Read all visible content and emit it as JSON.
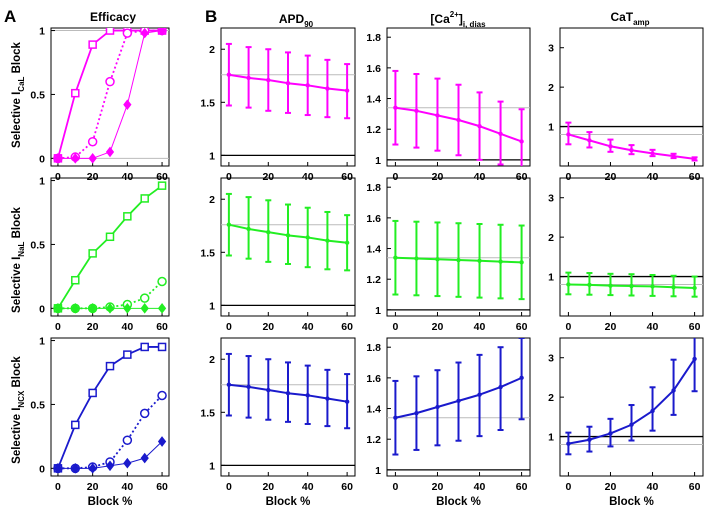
{
  "figure": {
    "panel_a": "A",
    "panel_b": "B",
    "column_titles": {
      "efficacy": "Efficacy",
      "apd": {
        "base": "APD",
        "sub": "90"
      },
      "cadias": {
        "pre": "[Ca",
        "sup": "2+",
        "post": "]",
        "sub": "i, dias"
      },
      "catamp": {
        "base": "CaT",
        "sub": "amp"
      }
    },
    "row_labels": [
      {
        "pre": "Selective I",
        "sub": "CaL",
        "post": " Block"
      },
      {
        "pre": "Selective I",
        "sub": "NaL",
        "post": " Block"
      },
      {
        "pre": "Selective I",
        "sub": "NCX",
        "post": " Block"
      }
    ],
    "xlabel": "Block %"
  },
  "colors": {
    "magenta": "#ff00ff",
    "green": "#22ee22",
    "blue": "#1a1acc",
    "ref_gray": "#aaaaaa",
    "baseline": "#000000"
  },
  "chart_data": [
    {
      "type": "line",
      "panel": "efficacy",
      "row": "CaL",
      "title": "Efficacy",
      "xlabel": "",
      "x": [
        0,
        10,
        20,
        30,
        40,
        50,
        60
      ],
      "xlim": [
        -4,
        64
      ],
      "ylim": [
        -0.06,
        1.02
      ],
      "yticks": [
        0,
        0.5,
        1
      ],
      "ytick_labels": [
        "0",
        "0.5",
        "1"
      ],
      "xticks": [
        0,
        20,
        40,
        60
      ],
      "xtick_labels": [
        "0",
        "20",
        "40",
        "60"
      ],
      "reflines": [
        {
          "y": 1,
          "color": "#bbbbbb"
        },
        {
          "y": 0,
          "color": "#bbbbbb"
        }
      ],
      "series": [
        {
          "name": "squares",
          "marker": "square",
          "style": "solid",
          "width": 1.8,
          "values": [
            0,
            0.51,
            0.89,
            1,
            1,
            1,
            1
          ]
        },
        {
          "name": "circles",
          "marker": "circle",
          "style": "dotted",
          "width": 1.8,
          "values": [
            0,
            0.01,
            0.13,
            0.6,
            0.98,
            1,
            1
          ]
        },
        {
          "name": "diamonds",
          "marker": "diamond",
          "style": "solid",
          "width": 1.0,
          "values": [
            0,
            0,
            0,
            0.05,
            0.42,
            0.98,
            1
          ]
        }
      ]
    },
    {
      "type": "line",
      "panel": "efficacy",
      "row": "NaL",
      "xlabel": "",
      "x": [
        0,
        10,
        20,
        30,
        40,
        50,
        60
      ],
      "xlim": [
        -4,
        64
      ],
      "ylim": [
        -0.06,
        1.02
      ],
      "yticks": [
        0,
        0.5,
        1
      ],
      "ytick_labels": [
        "0",
        "0.5",
        "1"
      ],
      "xticks": [
        0,
        20,
        40,
        60
      ],
      "xtick_labels": [
        "0",
        "20",
        "40",
        "60"
      ],
      "reflines": [],
      "series": [
        {
          "name": "squares",
          "marker": "square",
          "style": "solid",
          "width": 1.8,
          "values": [
            0,
            0.22,
            0.43,
            0.56,
            0.72,
            0.86,
            0.96
          ]
        },
        {
          "name": "circles",
          "marker": "circle",
          "style": "dotted",
          "width": 1.8,
          "values": [
            0,
            0,
            0,
            0.01,
            0.03,
            0.08,
            0.21
          ]
        },
        {
          "name": "diamonds",
          "marker": "diamond",
          "style": "solid",
          "width": 1.0,
          "values": [
            0,
            0,
            0,
            0,
            0,
            0,
            0
          ]
        }
      ]
    },
    {
      "type": "line",
      "panel": "efficacy",
      "row": "NCX",
      "xlabel": "Block %",
      "x": [
        0,
        10,
        20,
        30,
        40,
        50,
        60
      ],
      "xlim": [
        -4,
        64
      ],
      "ylim": [
        -0.06,
        1.02
      ],
      "yticks": [
        0,
        0.5,
        1
      ],
      "ytick_labels": [
        "0",
        "0.5",
        "1"
      ],
      "xticks": [
        0,
        20,
        40,
        60
      ],
      "xtick_labels": [
        "0",
        "20",
        "40",
        "60"
      ],
      "reflines": [],
      "series": [
        {
          "name": "squares",
          "marker": "square",
          "style": "solid",
          "width": 1.8,
          "values": [
            0,
            0.34,
            0.59,
            0.8,
            0.89,
            0.95,
            0.95
          ]
        },
        {
          "name": "circles",
          "marker": "circle",
          "style": "dotted",
          "width": 1.8,
          "values": [
            0,
            0,
            0.01,
            0.05,
            0.22,
            0.43,
            0.57
          ]
        },
        {
          "name": "diamonds",
          "marker": "diamond",
          "style": "solid",
          "width": 1.0,
          "values": [
            0,
            0,
            0,
            0.02,
            0.04,
            0.08,
            0.21
          ]
        }
      ]
    },
    {
      "type": "line",
      "panel": "apd90",
      "row": "CaL",
      "xlabel": "",
      "x": [
        0,
        10,
        20,
        30,
        40,
        50,
        60
      ],
      "xlim": [
        -4,
        64
      ],
      "ylim": [
        0.9,
        2.2
      ],
      "yticks": [
        1,
        1.5,
        2
      ],
      "ytick_labels": [
        "1",
        "1.5",
        "2"
      ],
      "xticks": [
        0,
        20,
        40,
        60
      ],
      "xtick_labels": [
        "0",
        "20",
        "40",
        "60"
      ],
      "reflines": [
        {
          "y": 1,
          "color": "#000000"
        },
        {
          "y": 1.76,
          "color": "#bbbbbb"
        }
      ],
      "series": [
        {
          "name": "mean",
          "marker": "dot",
          "style": "solid",
          "width": 2,
          "values": [
            1.76,
            1.73,
            1.71,
            1.68,
            1.66,
            1.63,
            1.61
          ],
          "err_low": [
            1.47,
            1.45,
            1.42,
            1.4,
            1.38,
            1.36,
            1.35
          ],
          "err_high": [
            2.05,
            2.02,
            2.0,
            1.97,
            1.94,
            1.9,
            1.86
          ]
        }
      ]
    },
    {
      "type": "line",
      "panel": "apd90",
      "row": "NaL",
      "xlabel": "",
      "x": [
        0,
        10,
        20,
        30,
        40,
        50,
        60
      ],
      "xlim": [
        -4,
        64
      ],
      "ylim": [
        0.9,
        2.2
      ],
      "yticks": [
        1,
        1.5,
        2
      ],
      "ytick_labels": [
        "1",
        "1.5",
        "2"
      ],
      "xticks": [
        0,
        20,
        40,
        60
      ],
      "xtick_labels": [
        "0",
        "20",
        "40",
        "60"
      ],
      "reflines": [
        {
          "y": 1,
          "color": "#000000"
        },
        {
          "y": 1.76,
          "color": "#bbbbbb"
        }
      ],
      "series": [
        {
          "name": "mean",
          "marker": "dot",
          "style": "solid",
          "width": 2,
          "values": [
            1.76,
            1.72,
            1.69,
            1.66,
            1.64,
            1.61,
            1.59
          ],
          "err_low": [
            1.47,
            1.44,
            1.41,
            1.39,
            1.36,
            1.34,
            1.33
          ],
          "err_high": [
            2.05,
            2.02,
            1.99,
            1.95,
            1.92,
            1.88,
            1.85
          ]
        }
      ]
    },
    {
      "type": "line",
      "panel": "apd90",
      "row": "NCX",
      "xlabel": "Block %",
      "x": [
        0,
        10,
        20,
        30,
        40,
        50,
        60
      ],
      "xlim": [
        -4,
        64
      ],
      "ylim": [
        0.9,
        2.2
      ],
      "yticks": [
        1,
        1.5,
        2
      ],
      "ytick_labels": [
        "1",
        "1.5",
        "2"
      ],
      "xticks": [
        0,
        20,
        40,
        60
      ],
      "xtick_labels": [
        "0",
        "20",
        "40",
        "60"
      ],
      "reflines": [
        {
          "y": 1,
          "color": "#000000"
        },
        {
          "y": 1.76,
          "color": "#bbbbbb"
        }
      ],
      "series": [
        {
          "name": "mean",
          "marker": "dot",
          "style": "solid",
          "width": 2,
          "values": [
            1.76,
            1.74,
            1.71,
            1.68,
            1.66,
            1.63,
            1.6
          ],
          "err_low": [
            1.47,
            1.45,
            1.43,
            1.41,
            1.39,
            1.37,
            1.35
          ],
          "err_high": [
            2.05,
            2.03,
            2.0,
            1.97,
            1.94,
            1.9,
            1.86
          ]
        }
      ]
    },
    {
      "type": "line",
      "panel": "ca_dias",
      "row": "CaL",
      "xlabel": "",
      "x": [
        0,
        10,
        20,
        30,
        40,
        50,
        60
      ],
      "xlim": [
        -4,
        64
      ],
      "ylim": [
        0.96,
        1.86
      ],
      "yticks": [
        1,
        1.2,
        1.4,
        1.6,
        1.8
      ],
      "ytick_labels": [
        "1",
        "1.2",
        "1.4",
        "1.6",
        "1.8"
      ],
      "xticks": [
        0,
        20,
        40,
        60
      ],
      "xtick_labels": [
        "0",
        "20",
        "40",
        "60"
      ],
      "reflines": [
        {
          "y": 1,
          "color": "#000000"
        },
        {
          "y": 1.34,
          "color": "#bbbbbb"
        }
      ],
      "series": [
        {
          "name": "mean",
          "marker": "dot",
          "style": "solid",
          "width": 2,
          "values": [
            1.34,
            1.32,
            1.29,
            1.26,
            1.22,
            1.17,
            1.12
          ],
          "err_low": [
            1.1,
            1.08,
            1.06,
            1.03,
            1.0,
            0.97,
            0.94
          ],
          "err_high": [
            1.58,
            1.56,
            1.53,
            1.49,
            1.44,
            1.38,
            1.33
          ]
        }
      ]
    },
    {
      "type": "line",
      "panel": "ca_dias",
      "row": "NaL",
      "xlabel": "",
      "x": [
        0,
        10,
        20,
        30,
        40,
        50,
        60
      ],
      "xlim": [
        -4,
        64
      ],
      "ylim": [
        0.96,
        1.86
      ],
      "yticks": [
        1,
        1.2,
        1.4,
        1.6,
        1.8
      ],
      "ytick_labels": [
        "1",
        "1.2",
        "1.4",
        "1.6",
        "1.8"
      ],
      "xticks": [
        0,
        20,
        40,
        60
      ],
      "xtick_labels": [
        "0",
        "20",
        "40",
        "60"
      ],
      "reflines": [
        {
          "y": 1,
          "color": "#000000"
        },
        {
          "y": 1.34,
          "color": "#bbbbbb"
        }
      ],
      "series": [
        {
          "name": "mean",
          "marker": "dot",
          "style": "solid",
          "width": 2,
          "values": [
            1.34,
            1.335,
            1.33,
            1.325,
            1.32,
            1.315,
            1.31
          ],
          "err_low": [
            1.1,
            1.095,
            1.09,
            1.085,
            1.08,
            1.075,
            1.07
          ],
          "err_high": [
            1.58,
            1.575,
            1.57,
            1.565,
            1.56,
            1.555,
            1.55
          ]
        }
      ]
    },
    {
      "type": "line",
      "panel": "ca_dias",
      "row": "NCX",
      "xlabel": "Block %",
      "x": [
        0,
        10,
        20,
        30,
        40,
        50,
        60
      ],
      "xlim": [
        -4,
        64
      ],
      "ylim": [
        0.96,
        1.86
      ],
      "yticks": [
        1,
        1.2,
        1.4,
        1.6,
        1.8
      ],
      "ytick_labels": [
        "1",
        "1.2",
        "1.4",
        "1.6",
        "1.8"
      ],
      "xticks": [
        0,
        20,
        40,
        60
      ],
      "xtick_labels": [
        "0",
        "20",
        "40",
        "60"
      ],
      "reflines": [
        {
          "y": 1,
          "color": "#000000"
        },
        {
          "y": 1.34,
          "color": "#bbbbbb"
        }
      ],
      "series": [
        {
          "name": "mean",
          "marker": "dot",
          "style": "solid",
          "width": 2,
          "values": [
            1.34,
            1.37,
            1.41,
            1.45,
            1.49,
            1.54,
            1.6
          ],
          "err_low": [
            1.1,
            1.13,
            1.16,
            1.19,
            1.22,
            1.26,
            1.33
          ],
          "err_high": [
            1.58,
            1.61,
            1.65,
            1.7,
            1.75,
            1.8,
            1.86
          ]
        }
      ]
    },
    {
      "type": "line",
      "panel": "cat_amp",
      "row": "CaL",
      "xlabel": "",
      "x": [
        0,
        10,
        20,
        30,
        40,
        50,
        60
      ],
      "xlim": [
        -4,
        64
      ],
      "ylim": [
        0,
        3.5
      ],
      "yticks": [
        1,
        2,
        3
      ],
      "ytick_labels": [
        "1",
        "2",
        "3"
      ],
      "xticks": [
        0,
        20,
        40,
        60
      ],
      "xtick_labels": [
        "0",
        "20",
        "40",
        "60"
      ],
      "reflines": [
        {
          "y": 1,
          "color": "#000000"
        },
        {
          "y": 0.8,
          "color": "#bbbbbb"
        }
      ],
      "series": [
        {
          "name": "mean",
          "marker": "dot",
          "style": "solid",
          "width": 2,
          "values": [
            0.8,
            0.65,
            0.5,
            0.4,
            0.32,
            0.25,
            0.18
          ],
          "err_low": [
            0.55,
            0.47,
            0.36,
            0.3,
            0.25,
            0.2,
            0.14
          ],
          "err_high": [
            1.1,
            0.86,
            0.67,
            0.53,
            0.41,
            0.31,
            0.22
          ]
        }
      ]
    },
    {
      "type": "line",
      "panel": "cat_amp",
      "row": "NaL",
      "xlabel": "",
      "x": [
        0,
        10,
        20,
        30,
        40,
        50,
        60
      ],
      "xlim": [
        -4,
        64
      ],
      "ylim": [
        0,
        3.5
      ],
      "yticks": [
        1,
        2,
        3
      ],
      "ytick_labels": [
        "1",
        "2",
        "3"
      ],
      "xticks": [
        0,
        20,
        40,
        60
      ],
      "xtick_labels": [
        "0",
        "20",
        "40",
        "60"
      ],
      "reflines": [
        {
          "y": 1,
          "color": "#000000"
        },
        {
          "y": 0.8,
          "color": "#bbbbbb"
        }
      ],
      "series": [
        {
          "name": "mean",
          "marker": "dot",
          "style": "solid",
          "width": 2,
          "values": [
            0.8,
            0.79,
            0.77,
            0.76,
            0.75,
            0.73,
            0.71
          ],
          "err_low": [
            0.55,
            0.54,
            0.53,
            0.52,
            0.51,
            0.5,
            0.49
          ],
          "err_high": [
            1.1,
            1.09,
            1.07,
            1.06,
            1.04,
            1.02,
            1.0
          ]
        }
      ]
    },
    {
      "type": "line",
      "panel": "cat_amp",
      "row": "NCX",
      "xlabel": "Block %",
      "x": [
        0,
        10,
        20,
        30,
        40,
        50,
        60
      ],
      "xlim": [
        -4,
        64
      ],
      "ylim": [
        0,
        3.5
      ],
      "yticks": [
        1,
        2,
        3
      ],
      "ytick_labels": [
        "1",
        "2",
        "3"
      ],
      "xticks": [
        0,
        20,
        40,
        60
      ],
      "xtick_labels": [
        "0",
        "20",
        "40",
        "60"
      ],
      "reflines": [
        {
          "y": 1,
          "color": "#000000"
        },
        {
          "y": 0.8,
          "color": "#bbbbbb"
        }
      ],
      "series": [
        {
          "name": "mean",
          "marker": "dot",
          "style": "solid",
          "width": 2,
          "values": [
            0.82,
            0.92,
            1.08,
            1.3,
            1.65,
            2.17,
            2.97
          ],
          "err_low": [
            0.55,
            0.62,
            0.75,
            0.9,
            1.15,
            1.55,
            2.15
          ],
          "err_high": [
            1.1,
            1.25,
            1.45,
            1.8,
            2.25,
            2.95,
            3.55
          ]
        }
      ]
    }
  ]
}
